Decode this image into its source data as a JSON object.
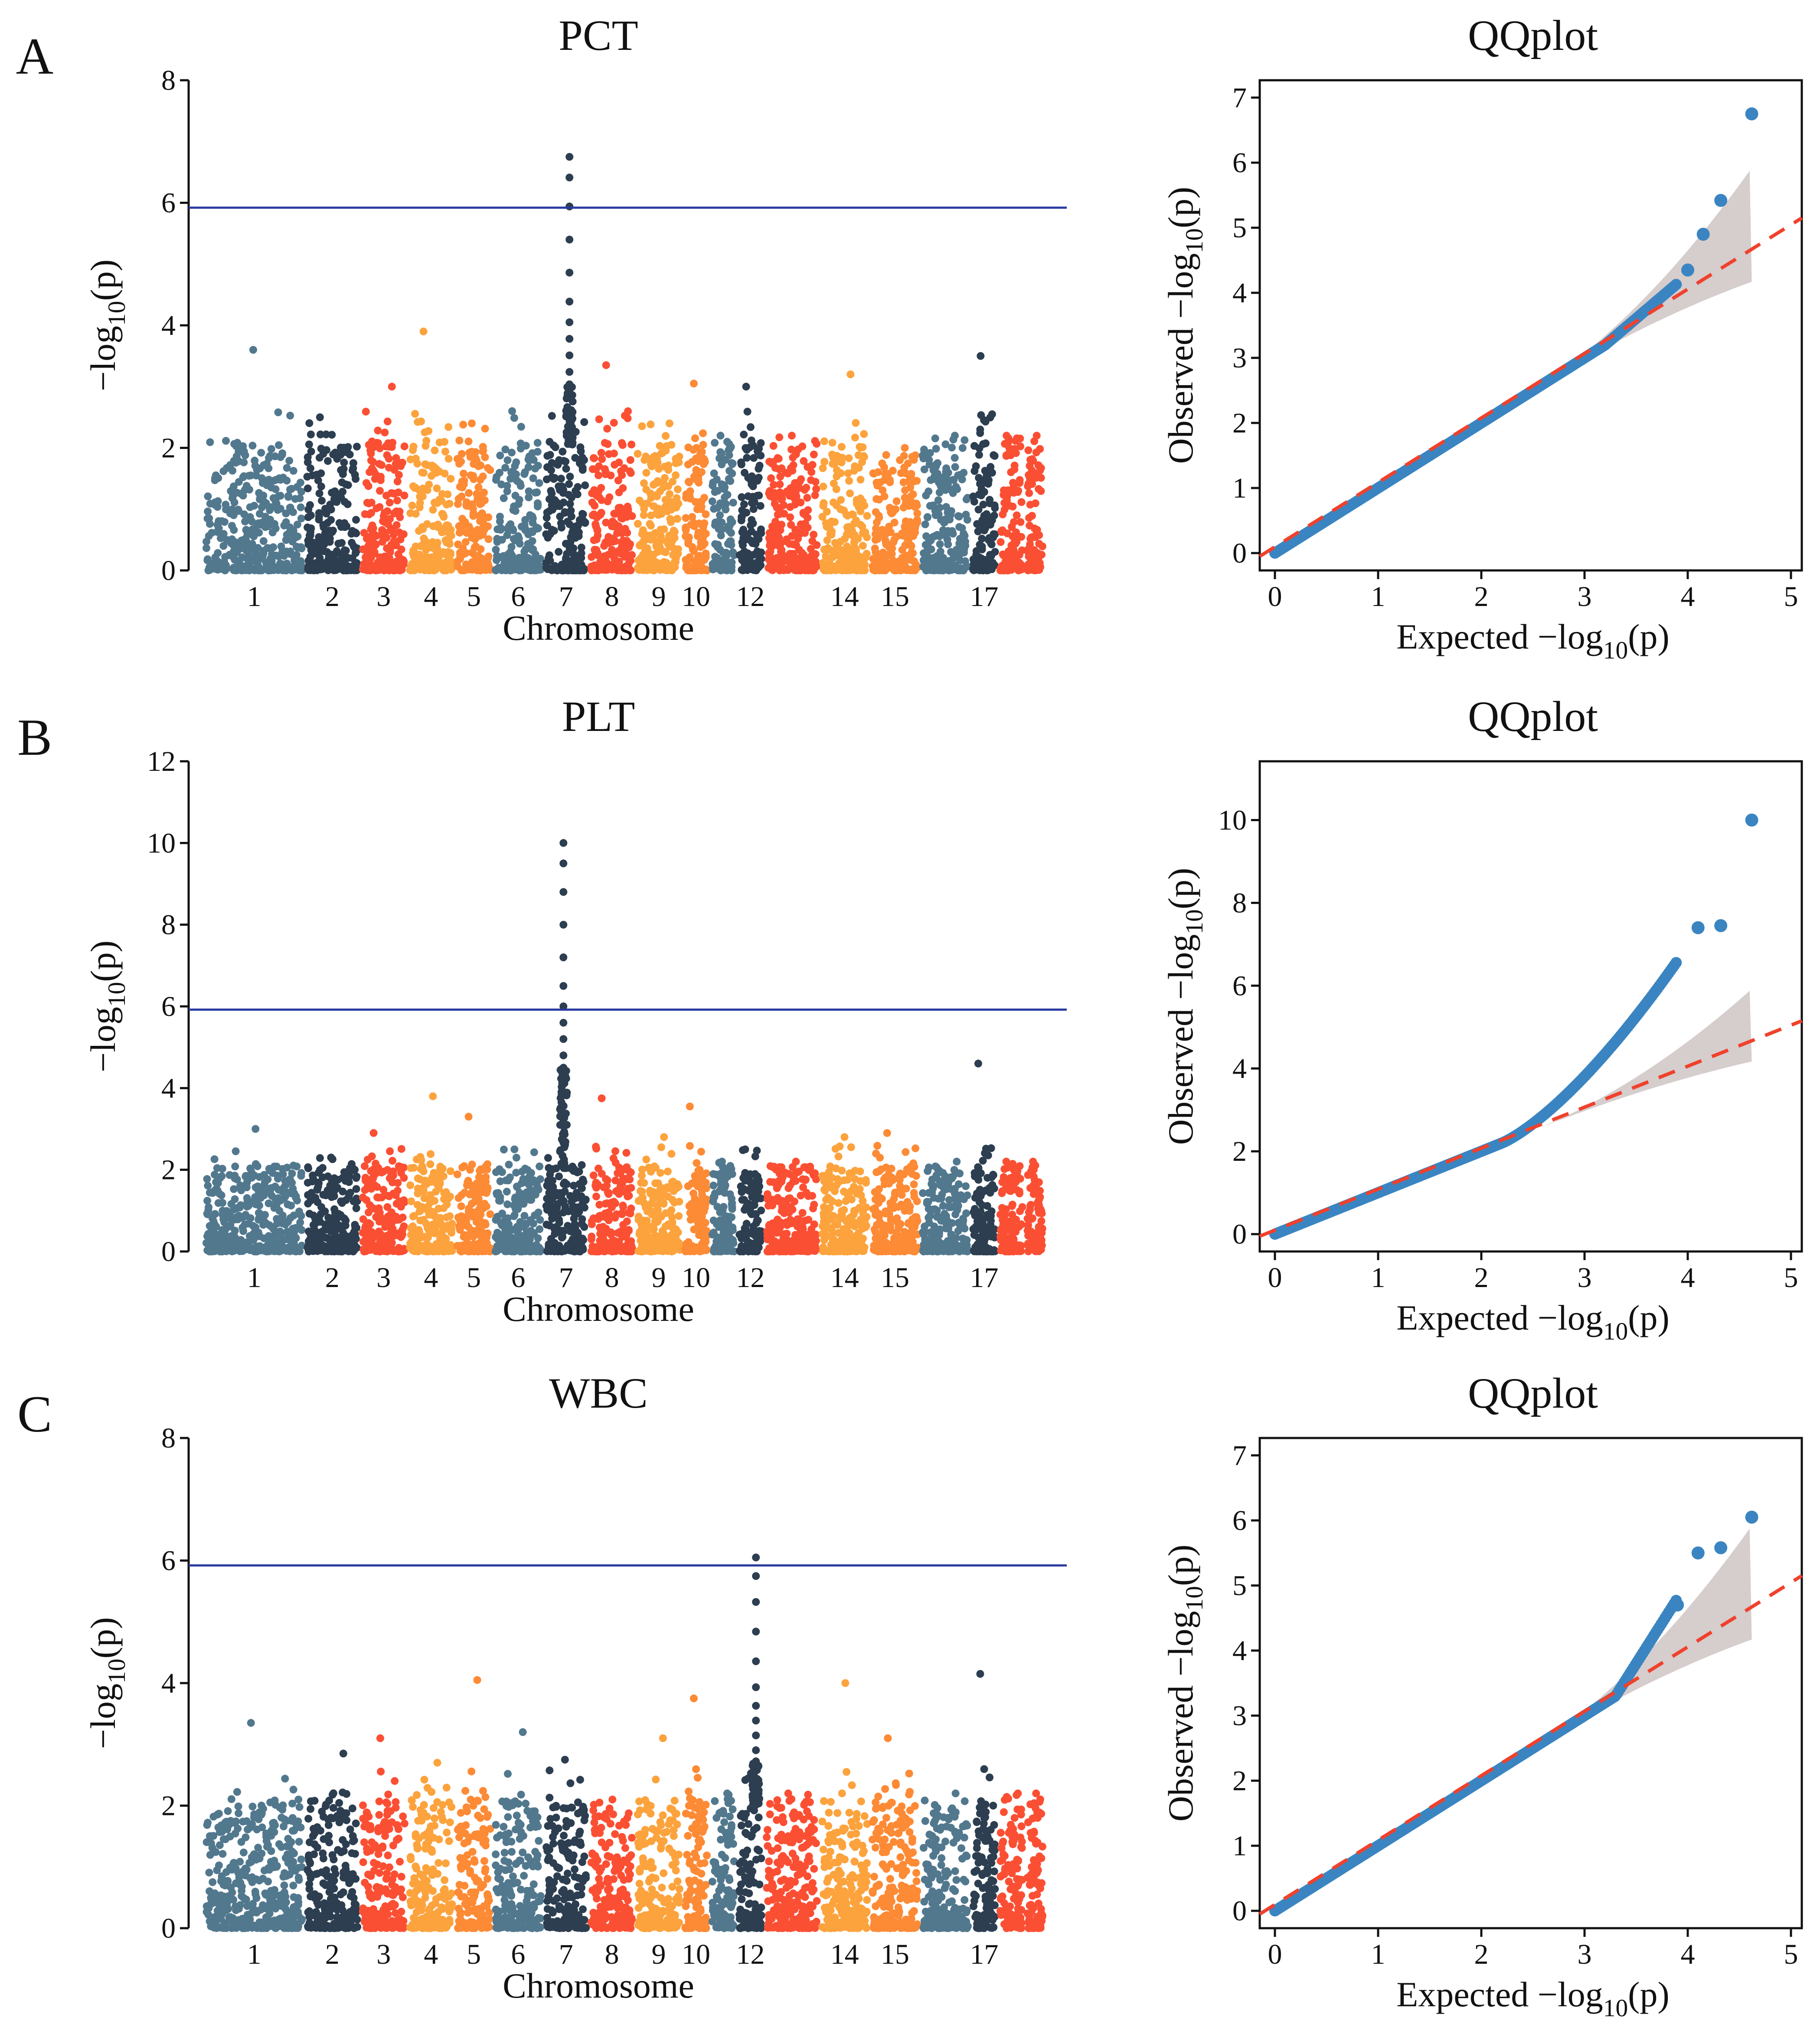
{
  "panels": [
    {
      "letter": "A",
      "manhattan": {
        "title": "PCT",
        "xlabel": "Chromosome",
        "ylabel_prefix": "−log",
        "ylabel_sub": "10",
        "ylabel_suffix": "(p)",
        "yticks": [
          0,
          2,
          4,
          6,
          8
        ],
        "ylim": [
          0,
          8
        ],
        "threshold": 5.92,
        "peak": 7
      },
      "qq": {
        "title": "QQplot",
        "xlabel": "Expected  −log",
        "xlabel_sub": "10",
        "xlabel_suffix": "(p)",
        "ylabel": "Observed  −log",
        "ylabel_sub": "10",
        "ylabel_suffix": "(p)",
        "xticks": [
          0,
          1,
          2,
          3,
          4,
          5
        ],
        "yticks": [
          0,
          1,
          2,
          3,
          4,
          5,
          6,
          7
        ],
        "xlim": [
          0,
          5
        ],
        "ylim": [
          0,
          7
        ],
        "max_point": 6.75
      }
    },
    {
      "letter": "B",
      "manhattan": {
        "title": "PLT",
        "xlabel": "Chromosome",
        "ylabel_prefix": "−log",
        "ylabel_sub": "10",
        "ylabel_suffix": "(p)",
        "yticks": [
          0,
          2,
          4,
          6,
          8,
          10,
          12
        ],
        "ylim": [
          0,
          12
        ],
        "threshold": 5.92,
        "peak": 7
      },
      "qq": {
        "title": "QQplot",
        "xlabel": "Expected  −log",
        "xlabel_sub": "10",
        "xlabel_suffix": "(p)",
        "ylabel": "Observed  −log",
        "ylabel_sub": "10",
        "ylabel_suffix": "(p)",
        "xticks": [
          0,
          1,
          2,
          3,
          4,
          5
        ],
        "yticks": [
          0,
          2,
          4,
          6,
          8,
          10
        ],
        "xlim": [
          0,
          5
        ],
        "ylim": [
          0,
          11
        ],
        "max_point": 10.0
      }
    },
    {
      "letter": "C",
      "manhattan": {
        "title": "WBC",
        "xlabel": "Chromosome",
        "ylabel_prefix": "−log",
        "ylabel_sub": "10",
        "ylabel_suffix": "(p)",
        "yticks": [
          0,
          2,
          4,
          6,
          8
        ],
        "ylim": [
          0,
          8
        ],
        "threshold": 5.92,
        "peak": 12
      },
      "qq": {
        "title": "QQplot",
        "xlabel": "Expected  −log",
        "xlabel_sub": "10",
        "xlabel_suffix": "(p)",
        "ylabel": "Observed  −log",
        "ylabel_sub": "10",
        "ylabel_suffix": "(p)",
        "xticks": [
          0,
          1,
          2,
          3,
          4,
          5
        ],
        "yticks": [
          0,
          1,
          2,
          3,
          4,
          5,
          6,
          7
        ],
        "xlim": [
          0,
          5
        ],
        "ylim": [
          0,
          7
        ],
        "max_point": 6.05
      }
    }
  ],
  "chart_data": [
    {
      "type": "scatter",
      "subtype": "manhattan",
      "title": "PCT",
      "xlabel": "Chromosome",
      "ylabel": "−log10(p)",
      "ylim": [
        0,
        8
      ],
      "threshold": 5.92,
      "chromosome_tick_labels": [
        "1",
        "2",
        "3",
        "4",
        "5",
        "6",
        "7",
        "8",
        "9",
        "10",
        "12",
        "14",
        "15",
        "17"
      ],
      "chromosome_max": [
        {
          "chr": "1",
          "value": 3.6
        },
        {
          "chr": "2",
          "value": 2.5
        },
        {
          "chr": "3",
          "value": 3.0
        },
        {
          "chr": "4",
          "value": 3.9
        },
        {
          "chr": "5",
          "value": 2.4
        },
        {
          "chr": "6",
          "value": 2.6
        },
        {
          "chr": "7",
          "value": 6.75
        },
        {
          "chr": "8",
          "value": 3.35
        },
        {
          "chr": "9",
          "value": 2.4
        },
        {
          "chr": "10",
          "value": 3.05
        },
        {
          "chr": "12",
          "value": 3.0
        },
        {
          "chr": "14",
          "value": 3.2
        },
        {
          "chr": "15",
          "value": 2.0
        },
        {
          "chr": "17",
          "value": 3.5
        }
      ]
    },
    {
      "type": "scatter",
      "subtype": "qq",
      "title": "QQplot",
      "xlabel": "Expected −log10(p)",
      "ylabel": "Observed −log10(p)",
      "xlim": [
        0,
        5
      ],
      "ylim": [
        0,
        7
      ],
      "top_points": [
        [
          4.0,
          4.35
        ],
        [
          4.15,
          4.9
        ],
        [
          4.32,
          5.42
        ],
        [
          4.62,
          6.75
        ]
      ]
    },
    {
      "type": "scatter",
      "subtype": "manhattan",
      "title": "PLT",
      "xlabel": "Chromosome",
      "ylabel": "−log10(p)",
      "ylim": [
        0,
        12
      ],
      "threshold": 5.92,
      "chromosome_tick_labels": [
        "1",
        "2",
        "3",
        "4",
        "5",
        "6",
        "7",
        "8",
        "9",
        "10",
        "12",
        "14",
        "15",
        "17"
      ],
      "chromosome_max": [
        {
          "chr": "1",
          "value": 3.0
        },
        {
          "chr": "2",
          "value": 2.3
        },
        {
          "chr": "3",
          "value": 2.9
        },
        {
          "chr": "4",
          "value": 3.8
        },
        {
          "chr": "5",
          "value": 3.3
        },
        {
          "chr": "6",
          "value": 2.5
        },
        {
          "chr": "7",
          "value": 10.0
        },
        {
          "chr": "8",
          "value": 3.75
        },
        {
          "chr": "9",
          "value": 2.8
        },
        {
          "chr": "10",
          "value": 3.55
        },
        {
          "chr": "12",
          "value": 2.5
        },
        {
          "chr": "14",
          "value": 2.8
        },
        {
          "chr": "15",
          "value": 2.9
        },
        {
          "chr": "17",
          "value": 4.6
        }
      ]
    },
    {
      "type": "scatter",
      "subtype": "qq",
      "title": "QQplot",
      "xlabel": "Expected −log10(p)",
      "ylabel": "Observed −log10(p)",
      "xlim": [
        0,
        5
      ],
      "ylim": [
        0,
        11
      ],
      "top_points": [
        [
          4.1,
          7.4
        ],
        [
          4.32,
          7.45
        ],
        [
          4.62,
          10.0
        ]
      ]
    },
    {
      "type": "scatter",
      "subtype": "manhattan",
      "title": "WBC",
      "xlabel": "Chromosome",
      "ylabel": "−log10(p)",
      "ylim": [
        0,
        8
      ],
      "threshold": 5.92,
      "chromosome_tick_labels": [
        "1",
        "2",
        "3",
        "4",
        "5",
        "6",
        "7",
        "8",
        "9",
        "10",
        "12",
        "14",
        "15",
        "17"
      ],
      "chromosome_max": [
        {
          "chr": "1",
          "value": 3.35
        },
        {
          "chr": "2",
          "value": 2.85
        },
        {
          "chr": "3",
          "value": 3.1
        },
        {
          "chr": "4",
          "value": 2.7
        },
        {
          "chr": "5",
          "value": 4.05
        },
        {
          "chr": "6",
          "value": 3.2
        },
        {
          "chr": "7",
          "value": 2.75
        },
        {
          "chr": "8",
          "value": 2.1
        },
        {
          "chr": "9",
          "value": 3.1
        },
        {
          "chr": "10",
          "value": 3.75
        },
        {
          "chr": "12",
          "value": 6.05
        },
        {
          "chr": "14",
          "value": 4.0
        },
        {
          "chr": "15",
          "value": 3.1
        },
        {
          "chr": "17",
          "value": 4.15
        }
      ]
    },
    {
      "type": "scatter",
      "subtype": "qq",
      "title": "QQplot",
      "xlabel": "Expected −log10(p)",
      "ylabel": "Observed −log10(p)",
      "xlim": [
        0,
        5
      ],
      "ylim": [
        0,
        7
      ],
      "top_points": [
        [
          3.9,
          4.7
        ],
        [
          4.1,
          5.5
        ],
        [
          4.32,
          5.58
        ],
        [
          4.62,
          6.05
        ]
      ]
    }
  ],
  "colors": {
    "chr_palette": [
      "#52788e",
      "#2c3e50",
      "#fb4f34",
      "#fca33d",
      "#fd8a35"
    ],
    "threshold": "#2a3aa0",
    "qq_points": "#3a85c1",
    "qq_line": "#f0412c",
    "ci_band": "#d6cdcd"
  }
}
